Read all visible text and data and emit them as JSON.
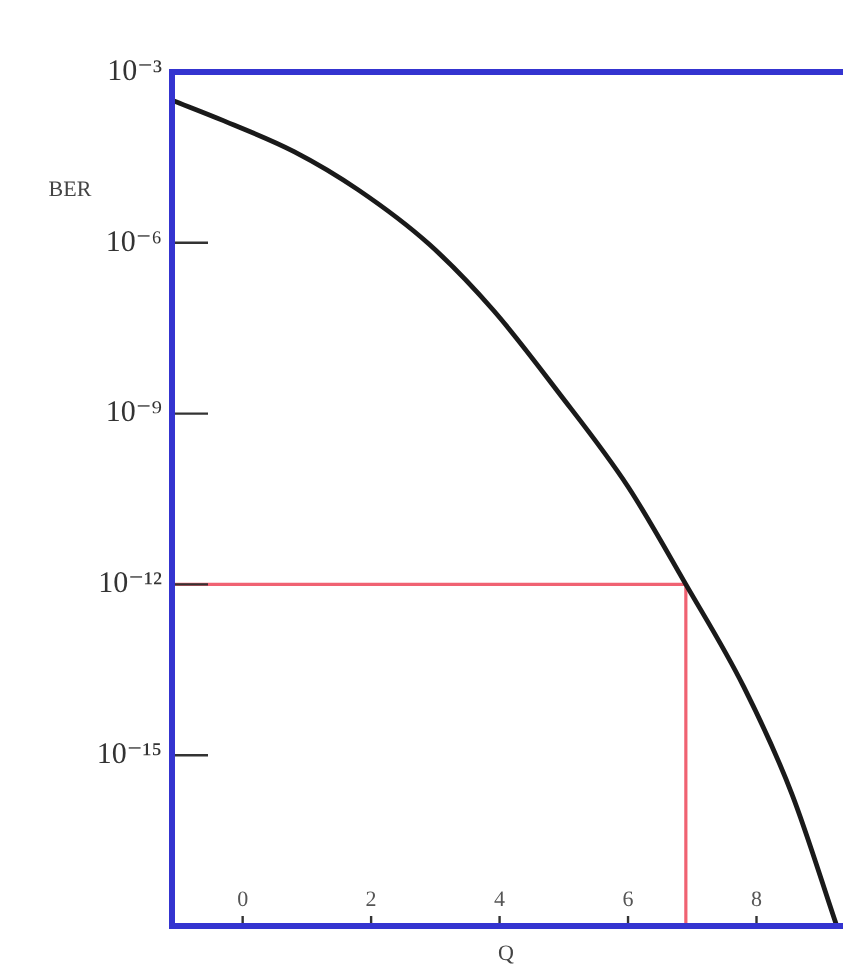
{
  "chart_data": {
    "type": "line",
    "xlabel": "Q",
    "ylabel": "BER",
    "x": [
      -1.1,
      -0.3,
      0.8,
      1.8,
      2.9,
      3.9,
      4.9,
      6,
      6.9,
      7.8,
      8.55,
      9.25
    ],
    "series": [
      {
        "color": "#1a1a1a",
        "values": [
          0.00032,
          0.00014,
          4e-05,
          8.5e-06,
          9.5e-07,
          6.6e-08,
          2.5e-09,
          5.2e-11,
          1e-12,
          1.6e-14,
          2.1e-16,
          1e-18
        ]
      }
    ],
    "xlim": [
      -1.1,
      9.3
    ],
    "xticks": [
      0,
      2,
      4,
      6,
      8
    ],
    "ylim": [
      1e-18,
      0.001
    ],
    "yticks": [
      {
        "value": 0.001,
        "label": "10⁻³"
      },
      {
        "value": 1e-06,
        "label": "10⁻⁶"
      },
      {
        "value": 1e-09,
        "label": "10⁻⁹"
      },
      {
        "value": 1e-12,
        "label": "10⁻¹²"
      },
      {
        "value": 1e-15,
        "label": "10⁻¹⁵"
      }
    ],
    "log": "y",
    "grid": false,
    "marker": "none",
    "line_style": "solid",
    "ref_lines": [
      {
        "axis": "y",
        "value": 1e-12,
        "color": "#f06272"
      },
      {
        "axis": "x",
        "value": 6.9,
        "color": "#f06272"
      }
    ]
  }
}
